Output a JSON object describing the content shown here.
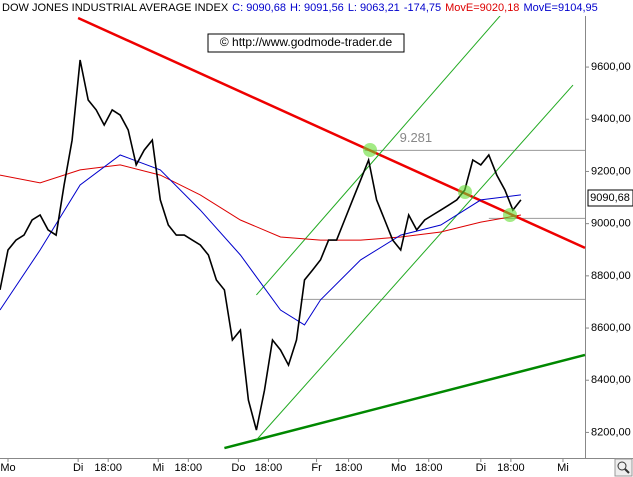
{
  "chart_data": {
    "type": "line",
    "header": [
      {
        "text": "DOW JONES INDUSTRIAL AVERAGE INDEX",
        "color": "#000000"
      },
      {
        "text": "C: 9090,68",
        "color": "#0000cc"
      },
      {
        "text": "H: 9091,56",
        "color": "#0000cc"
      },
      {
        "text": "L: 9063,21",
        "color": "#0000cc"
      },
      {
        "text": "-174,75",
        "color": "#0000cc"
      },
      {
        "text": "MovE=9020,18",
        "color": "#dd0000"
      },
      {
        "text": "MovE=9104,95",
        "color": "#0000cc"
      }
    ],
    "annotation": "© http://www.godmode-trader.de",
    "last_label": "9090,68",
    "xlim": [
      0,
      73
    ],
    "ylim": [
      8102,
      9857
    ],
    "xticks": [
      {
        "value": 1,
        "label": "Mo"
      },
      {
        "value": 9.75,
        "label": "Di"
      },
      {
        "value": 13.5,
        "label": "18:00"
      },
      {
        "value": 19.75,
        "label": "Mi"
      },
      {
        "value": 23.5,
        "label": "18:00"
      },
      {
        "value": 29.75,
        "label": "Do"
      },
      {
        "value": 33.5,
        "label": "18:00"
      },
      {
        "value": 39.5,
        "label": "Fr"
      },
      {
        "value": 43.5,
        "label": "18:00"
      },
      {
        "value": 49.75,
        "label": "Mo"
      },
      {
        "value": 53.5,
        "label": "18:00"
      },
      {
        "value": 60,
        "label": "Di"
      },
      {
        "value": 63.75,
        "label": "18:00"
      },
      {
        "value": 70.25,
        "label": "Mi"
      }
    ],
    "yticks": [
      {
        "value": 8200,
        "label": "8200,00"
      },
      {
        "value": 8400,
        "label": "8400,00"
      },
      {
        "value": 8600,
        "label": "8600,00"
      },
      {
        "value": 8800,
        "label": "8800,00"
      },
      {
        "value": 9000,
        "label": "9000,00"
      },
      {
        "value": 9200,
        "label": "9200,00"
      },
      {
        "value": 9400,
        "label": "9400,00"
      },
      {
        "value": 9600,
        "label": "9600,00"
      }
    ],
    "series": [
      {
        "color": "#000000",
        "width": 1.6,
        "x": [
          0,
          1,
          2,
          3,
          4,
          5,
          6,
          7,
          8,
          9,
          10,
          11,
          12,
          13,
          14,
          15,
          16,
          17,
          18,
          19,
          20,
          21,
          22,
          23,
          24,
          25,
          26,
          27,
          28,
          29,
          30,
          31,
          32,
          33,
          34,
          35,
          36,
          37,
          38,
          39,
          40,
          41,
          42,
          43,
          44,
          45,
          46,
          47,
          48,
          49,
          50,
          51,
          52,
          53,
          54,
          55,
          56,
          57,
          58,
          59,
          60,
          61,
          62,
          63,
          64,
          65
        ],
        "values": [
          8746,
          8899,
          8937,
          8956,
          9014,
          9033,
          8976,
          8956,
          9148,
          9320,
          9627,
          9474,
          9436,
          9378,
          9436,
          9416,
          9359,
          9225,
          9282,
          9320,
          9091,
          8995,
          8956,
          8956,
          8937,
          8918,
          8880,
          8784,
          8746,
          8554,
          8592,
          8324,
          8209,
          8362,
          8554,
          8516,
          8458,
          8554,
          8784,
          8822,
          8861,
          8937,
          8937,
          9014,
          9091,
          9167,
          9244,
          9091,
          9014,
          8937,
          8899,
          9033,
          8976,
          9014,
          9033,
          9052,
          9071,
          9091,
          9129,
          9244,
          9225,
          9263,
          9186,
          9129,
          9052,
          9091
        ]
      },
      {
        "color": "#dd0000",
        "width": 1,
        "x": [
          0,
          5,
          10,
          15,
          20,
          25,
          30,
          35,
          40,
          45,
          50,
          55,
          60,
          65
        ],
        "values": [
          9186,
          9156,
          9206,
          9225,
          9186,
          9110,
          9014,
          8949,
          8937,
          8937,
          8949,
          8968,
          9006,
          9033
        ]
      },
      {
        "color": "#0000cc",
        "width": 1,
        "x": [
          0,
          5,
          10,
          15,
          20,
          25,
          30,
          35,
          38,
          40,
          45,
          50,
          55,
          60,
          65
        ],
        "values": [
          8669,
          8899,
          9148,
          9263,
          9206,
          9052,
          8880,
          8669,
          8612,
          8708,
          8861,
          8956,
          8995,
          9091,
          9110
        ]
      }
    ],
    "trendlines": [
      {
        "color": "#ee0000",
        "width": 2.5,
        "x": [
          9.75,
          73
        ],
        "values": [
          9788,
          8907
        ]
      },
      {
        "color": "#008800",
        "width": 2.5,
        "x": [
          28,
          73
        ],
        "values": [
          8140,
          8497
        ]
      },
      {
        "color": "#22aa22",
        "width": 1,
        "x": [
          32,
          62.5
        ],
        "values": [
          8727,
          9800
        ]
      },
      {
        "color": "#22aa22",
        "width": 1,
        "x": [
          32,
          71.5
        ],
        "values": [
          8171,
          9531
        ]
      }
    ],
    "hlines": [
      {
        "x0": 45.5,
        "value": 9281,
        "label": "9.281"
      },
      {
        "x0": 61,
        "value": 9020
      },
      {
        "x0": 37.5,
        "value": 8710
      }
    ]
  }
}
